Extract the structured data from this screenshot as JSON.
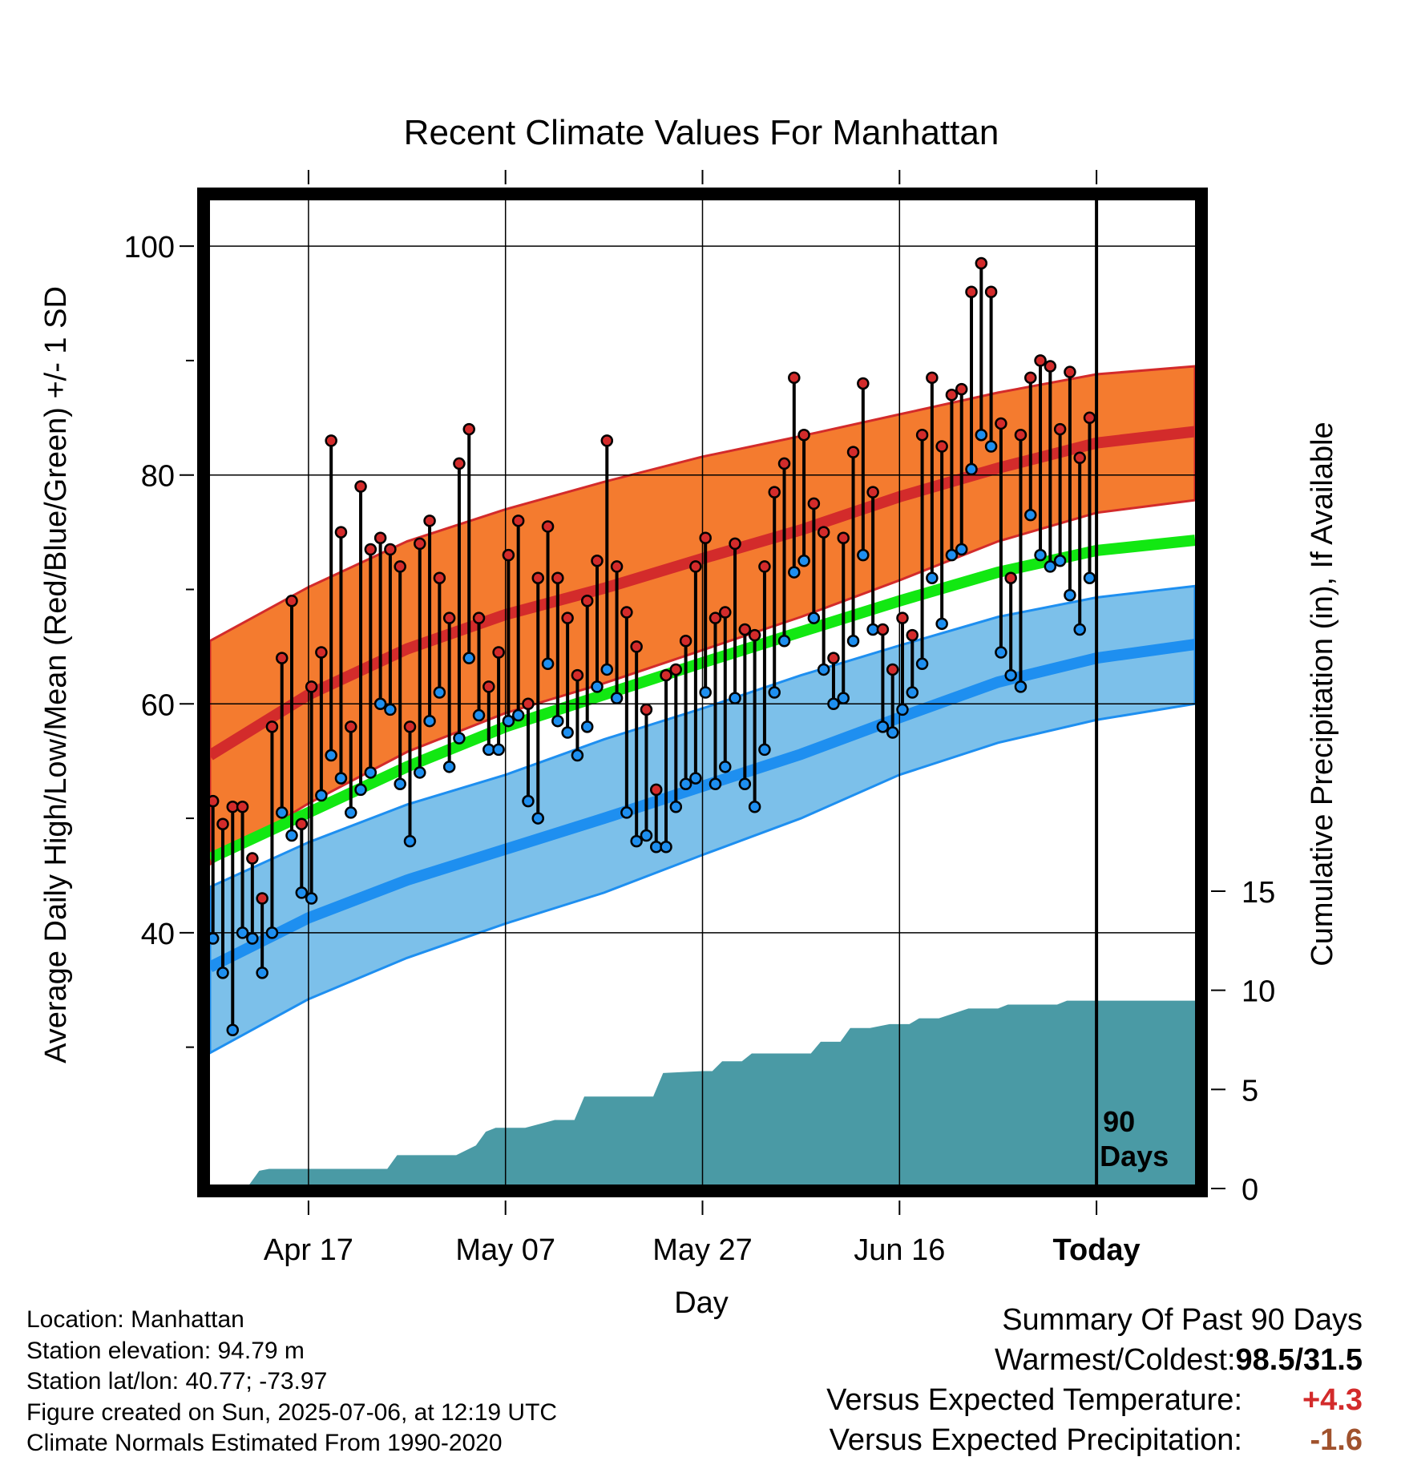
{
  "title": "Recent Climate Values For Manhattan",
  "colors": {
    "high_band": "#f47b2f",
    "high_line": "#d32b2b",
    "low_band": "#7cc0ea",
    "low_line": "#1e8ff0",
    "mean_line": "#12e812",
    "precip": "#4a9aa5",
    "warm_value": "#d32b2b",
    "precip_value": "#a0522d"
  },
  "chart_data": {
    "type": "line",
    "title": "Recent Climate Values For Manhattan",
    "xlabel": "Day",
    "ylabel": "Average Daily High/Low/Mean (Red/Blue/Green) +/- 1 SD",
    "y2label": "Cumulative Precipitation (in), If Available",
    "x_ticks": [
      {
        "label": "Apr 17",
        "day": 10
      },
      {
        "label": "May 07",
        "day": 30
      },
      {
        "label": "May 27",
        "day": 50
      },
      {
        "label": "Jun 16",
        "day": 70
      },
      {
        "label": "Today",
        "day": 90
      }
    ],
    "xlim": [
      0,
      100
    ],
    "ylim": [
      18,
      104
    ],
    "y_ticks": [
      40,
      60,
      80,
      100
    ],
    "y2lim": [
      0,
      15
    ],
    "y2_ticks": [
      0,
      5,
      10,
      15
    ],
    "grid": true,
    "annotation": "90 Days",
    "normals": {
      "days": [
        0,
        10,
        20,
        30,
        40,
        50,
        60,
        70,
        80,
        90,
        100
      ],
      "mean_high": [
        55.5,
        60.8,
        64.8,
        67.8,
        70.1,
        72.7,
        75.2,
        78.1,
        80.6,
        82.8,
        83.8
      ],
      "high_upper": [
        65.5,
        70.2,
        74.2,
        77.0,
        79.4,
        81.6,
        83.4,
        85.3,
        87.2,
        88.8,
        89.5
      ],
      "high_lower": [
        46.0,
        51.3,
        55.8,
        59.2,
        61.8,
        64.7,
        67.6,
        70.8,
        74.2,
        76.7,
        77.8
      ],
      "mean": [
        46.5,
        50.5,
        54.5,
        58.0,
        60.8,
        63.6,
        66.3,
        69.0,
        71.5,
        73.4,
        74.3
      ],
      "mean_low": [
        37.0,
        41.3,
        44.6,
        47.3,
        50.0,
        52.8,
        55.6,
        58.8,
        61.9,
        64.0,
        65.2
      ],
      "low_upper": [
        44.0,
        47.9,
        51.2,
        53.8,
        56.9,
        59.6,
        62.5,
        65.1,
        67.6,
        69.3,
        70.3
      ],
      "low_lower": [
        29.5,
        34.2,
        37.8,
        40.8,
        43.5,
        46.8,
        50.0,
        53.8,
        56.6,
        58.6,
        60.0
      ]
    },
    "series": [
      {
        "name": "High",
        "values": [
          51.5,
          49.5,
          51,
          51,
          46.5,
          43,
          58,
          64,
          69,
          49.5,
          61.5,
          64.5,
          83,
          75,
          58,
          79,
          73.5,
          74.5,
          73.5,
          72,
          58,
          74,
          76,
          71,
          67.5,
          81,
          84,
          67.5,
          61.5,
          64.5,
          73,
          76,
          60,
          71,
          75.5,
          71,
          67.5,
          62.5,
          69,
          72.5,
          83,
          72,
          68,
          65,
          59.5,
          52.5,
          62.5,
          63,
          65.5,
          72,
          74.5,
          67.5,
          68,
          74,
          66.5,
          66,
          72,
          78.5,
          81,
          88.5,
          83.5,
          77.5,
          75,
          64,
          74.5,
          82,
          88,
          78.5,
          66.5,
          63,
          67.5,
          66,
          83.5,
          88.5,
          82.5,
          87,
          87.5,
          96,
          98.5,
          96,
          84.5,
          71,
          83.5,
          88.5,
          90,
          89.5,
          84,
          89,
          81.5,
          85
        ]
      },
      {
        "name": "Low",
        "values": [
          39.5,
          36.5,
          31.5,
          40,
          39.5,
          36.5,
          40,
          50.5,
          48.5,
          43.5,
          43,
          52,
          55.5,
          53.5,
          50.5,
          52.5,
          54,
          60,
          59.5,
          53,
          48,
          54,
          58.5,
          61,
          54.5,
          57,
          64,
          59,
          56,
          56,
          58.5,
          59,
          51.5,
          50,
          63.5,
          58.5,
          57.5,
          55.5,
          58,
          61.5,
          63,
          60.5,
          50.5,
          48,
          48.5,
          47.5,
          47.5,
          51,
          53,
          53.5,
          61,
          53,
          54.5,
          60.5,
          53,
          51,
          56,
          61,
          65.5,
          71.5,
          72.5,
          67.5,
          63,
          60,
          60.5,
          65.5,
          73,
          66.5,
          58,
          57.5,
          59.5,
          61,
          63.5,
          71,
          67,
          73,
          73.5,
          80.5,
          83.5,
          82.5,
          64.5,
          62.5,
          61.5,
          76.5,
          73,
          72,
          72.5,
          69.5,
          66.5,
          71
        ]
      },
      {
        "name": "Cumulative Precipitation",
        "days": [
          0,
          4,
          5,
          6,
          8,
          18,
          19,
          25,
          27,
          28,
          29,
          32,
          35,
          37,
          38,
          45,
          46,
          50,
          51,
          52,
          54,
          55,
          61,
          62,
          64,
          65,
          67,
          69,
          71,
          72,
          74,
          77,
          80,
          81,
          84,
          86,
          87,
          100
        ],
        "values": [
          0,
          0,
          0.7,
          0.8,
          0.8,
          0.8,
          1.5,
          1.5,
          2.0,
          2.7,
          2.9,
          2.9,
          3.3,
          3.3,
          4.5,
          4.5,
          5.7,
          5.8,
          5.8,
          6.3,
          6.3,
          6.7,
          6.7,
          7.3,
          7.3,
          8.0,
          8.0,
          8.2,
          8.2,
          8.5,
          8.5,
          9.0,
          9.0,
          9.2,
          9.2,
          9.2,
          9.4,
          9.4
        ]
      }
    ]
  },
  "footer": {
    "location": "Location: Manhattan",
    "elevation": "Station elevation: 94.79 m",
    "latlon": "Station lat/lon: 40.77; -73.97",
    "created": "Figure created on Sun, 2025-07-06, at 12:19 UTC",
    "normals": "Climate Normals Estimated From 1990-2020"
  },
  "summary": {
    "heading": "Summary Of Past 90 Days",
    "warmest_label": "Warmest/Coldest:",
    "warmest_value": "98.5/31.5",
    "temp_label": "Versus Expected Temperature:",
    "temp_value": "+4.3",
    "precip_label": "Versus Expected Precipitation:",
    "precip_value": "-1.6"
  }
}
